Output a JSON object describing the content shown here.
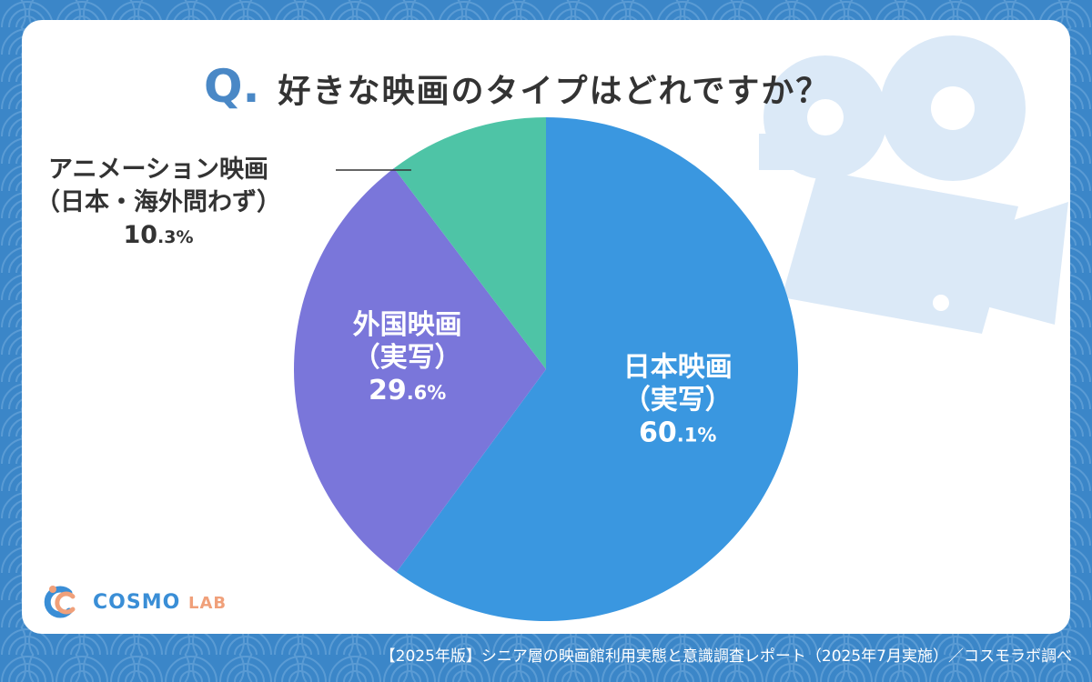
{
  "title": {
    "q_mark": "Q",
    "q_dot": ".",
    "question": "好きな映画のタイプはどれですか？"
  },
  "chart_data": {
    "type": "pie",
    "title": "好きな映画のタイプはどれですか？",
    "slices": [
      {
        "label_lines": [
          "日本映画",
          "（実写）"
        ],
        "pct_int": "60",
        "pct_dec": ".1%",
        "value": 60.1,
        "color": "#3a97e0",
        "label_pos": "inside"
      },
      {
        "label_lines": [
          "外国映画",
          "（実写）"
        ],
        "pct_int": "29",
        "pct_dec": ".6%",
        "value": 29.6,
        "color": "#7a76da",
        "label_pos": "inside"
      },
      {
        "label_lines": [
          "アニメーション映画",
          "（日本・海外問わず）"
        ],
        "pct_int": "10",
        "pct_dec": ".3%",
        "value": 10.3,
        "color": "#4ec4a6",
        "label_pos": "outside"
      }
    ]
  },
  "logo": {
    "main": "COSMO",
    "sub": "LAB"
  },
  "footer": "【2025年版】シニア層の映画館利用実態と意識調査レポート（2025年7月実施）／コスモラボ調べ",
  "colors": {
    "background": "#3b86c8",
    "card": "#ffffff",
    "accent": "#4a88c6",
    "decoration": "#dbe9f7"
  }
}
